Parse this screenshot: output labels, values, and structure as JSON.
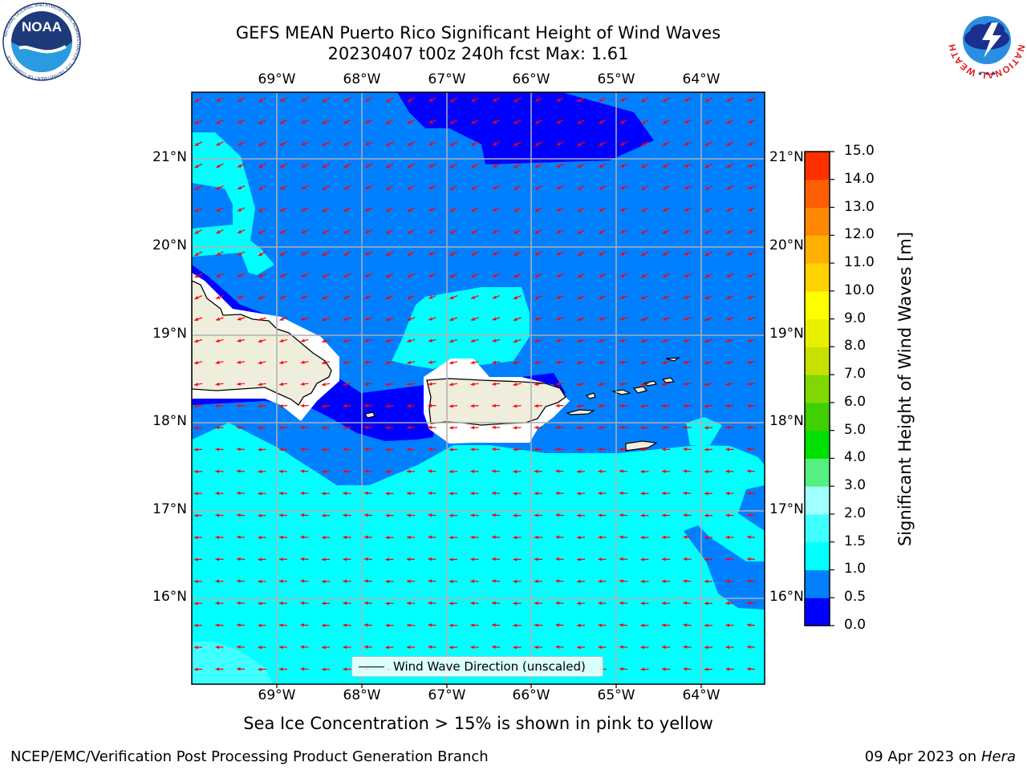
{
  "title": {
    "line1": "GEFS MEAN Puerto Rico Significant Height of Wind Waves",
    "line2": "20230407 t00z 240h fcst   Max: 1.61"
  },
  "map": {
    "lon_labels": [
      "69°W",
      "68°W",
      "67°W",
      "66°W",
      "65°W",
      "64°W"
    ],
    "lat_labels": [
      "21°N",
      "20°N",
      "19°N",
      "18°N",
      "17°N",
      "16°N"
    ],
    "lon_range": [
      -70,
      -63.25
    ],
    "lat_range": [
      15,
      21.75
    ],
    "gridlines": true,
    "field_colors": {
      "0.0-0.5": "#0000ff",
      "0.5-1.0": "#0080ff",
      "1.0-1.5": "#00ffff",
      "1.5-2.0": "#40ffff",
      "land": "#efeedc"
    },
    "arrow_color": "#ff0000"
  },
  "colorbar": {
    "label": "Significant Height of Wind Waves [m]",
    "ticks": [
      "0.0",
      "0.5",
      "1.0",
      "1.5",
      "2.0",
      "3.0",
      "4.0",
      "5.0",
      "6.0",
      "7.0",
      "8.0",
      "9.0",
      "10.0",
      "11.0",
      "12.0",
      "13.0",
      "14.0",
      "15.0"
    ],
    "colors": [
      "#0000ff",
      "#0080ff",
      "#00ffff",
      "#40ffff",
      "#a0ffff",
      "#55f080",
      "#00e000",
      "#40d000",
      "#80d800",
      "#c8e000",
      "#e8f000",
      "#ffff00",
      "#ffd200",
      "#ffb000",
      "#ff8800",
      "#ff5f00",
      "#ff3000",
      "#ff0000"
    ]
  },
  "legend": {
    "label": "Wind Wave Direction (unscaled)"
  },
  "ice_note": "Sea Ice Concentration > 15% is shown in pink to yellow",
  "footer": {
    "left": "NCEP/EMC/Verification Post Processing Product Generation Branch",
    "right_date": "09 Apr 2023 on",
    "right_host": "Hera"
  },
  "logos": {
    "left": {
      "text": "NOAA",
      "ring_text": "NATIONAL OCEANIC AND ATMOSPHERIC ADMINISTRATION · U.S. DEPARTMENT OF COMMERCE"
    },
    "right": {
      "ring_text": "NATIONAL WEATHER SERVICE"
    }
  }
}
